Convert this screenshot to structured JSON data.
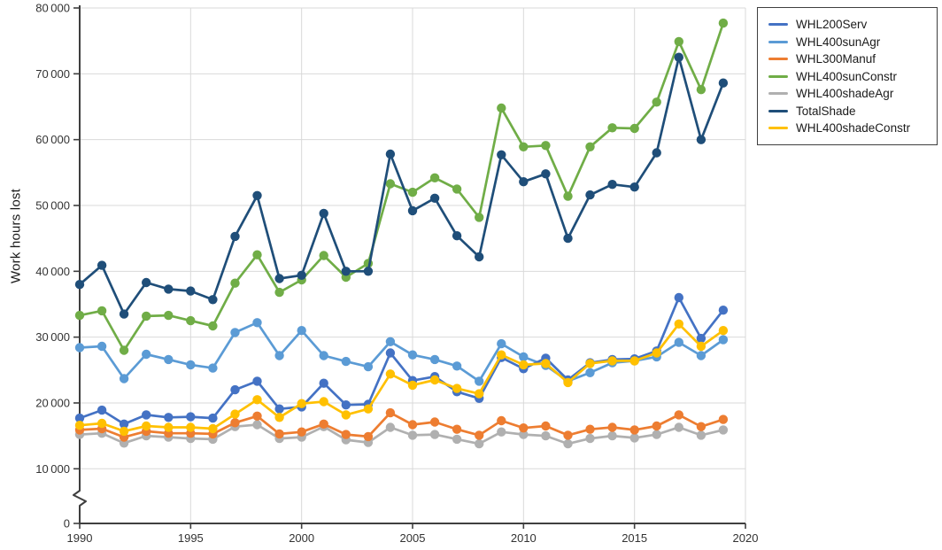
{
  "chart_data": {
    "type": "line",
    "title": "",
    "xlabel": "",
    "ylabel": "Work hours lost",
    "x": [
      1990,
      1991,
      1992,
      1993,
      1994,
      1995,
      1996,
      1997,
      1998,
      1999,
      2000,
      2001,
      2002,
      2003,
      2004,
      2005,
      2006,
      2007,
      2008,
      2009,
      2010,
      2011,
      2012,
      2013,
      2014,
      2015,
      2016,
      2017,
      2018,
      2019
    ],
    "x_axis": {
      "min": 1990,
      "max": 2020,
      "tick_years": [
        1990,
        1995,
        2000,
        2005,
        2010,
        2015,
        2020
      ],
      "tick_labels": [
        "1990",
        "1995",
        "2000",
        "2005",
        "2010",
        "2015",
        "2020"
      ]
    },
    "y_axis": {
      "min": 0,
      "max": 80000,
      "tick_interval": 10000,
      "axis_break_below": 10000,
      "tick_values": [
        0,
        10000,
        20000,
        30000,
        40000,
        50000,
        60000,
        70000,
        80000
      ],
      "tick_labels": [
        "0",
        "10 000",
        "20 000",
        "30 000",
        "40 000",
        "50 000",
        "60 000",
        "70 000",
        "80 000"
      ]
    },
    "grid": true,
    "legend": {
      "position": "top-right"
    },
    "series": [
      {
        "name": "WHL200Serv",
        "color": "#4472C4",
        "values": [
          17700,
          18900,
          16800,
          18200,
          17800,
          17900,
          17700,
          22000,
          23300,
          19100,
          19400,
          23000,
          19700,
          19800,
          27600,
          23400,
          24000,
          21700,
          20700,
          26900,
          25200,
          26800,
          23500,
          26100,
          26600,
          26700,
          27900,
          36000,
          29800,
          34100
        ]
      },
      {
        "name": "WHL400sunAgr",
        "color": "#5B9BD5",
        "values": [
          28400,
          28600,
          23700,
          27400,
          26600,
          25800,
          25300,
          30700,
          32200,
          27200,
          31000,
          27200,
          26300,
          25500,
          29300,
          27300,
          26600,
          25600,
          23300,
          29000,
          27000,
          25700,
          23300,
          24600,
          26100,
          26400,
          27000,
          29200,
          27200,
          29600
        ]
      },
      {
        "name": "WHL300Manuf",
        "color": "#ED7D31",
        "values": [
          15900,
          16100,
          14800,
          15700,
          15400,
          15400,
          15300,
          17000,
          18000,
          15300,
          15600,
          16800,
          15200,
          14900,
          18500,
          16700,
          17100,
          16000,
          15100,
          17300,
          16200,
          16500,
          15100,
          16000,
          16300,
          15900,
          16500,
          18200,
          16400,
          17500
        ]
      },
      {
        "name": "WHL400sunConstr",
        "color": "#70AD47",
        "values": [
          33300,
          34000,
          28000,
          33200,
          33300,
          32500,
          31700,
          38200,
          42500,
          36800,
          38700,
          42400,
          39100,
          41200,
          53300,
          52000,
          54200,
          52500,
          48200,
          64800,
          58900,
          59100,
          51400,
          58900,
          61800,
          61700,
          65700,
          74900,
          67600,
          77700
        ]
      },
      {
        "name": "WHL400shadeAgr",
        "color": "#B0B0B0",
        "values": [
          15200,
          15400,
          13900,
          15000,
          14800,
          14600,
          14500,
          16400,
          16700,
          14600,
          14800,
          16400,
          14400,
          14000,
          16300,
          15100,
          15200,
          14500,
          13800,
          15600,
          15200,
          15000,
          13800,
          14600,
          15000,
          14700,
          15200,
          16300,
          15100,
          15900
        ]
      },
      {
        "name": "TotalShade",
        "color": "#1F4E79",
        "values": [
          38000,
          40900,
          33500,
          38300,
          37300,
          37000,
          35700,
          45300,
          51500,
          38900,
          39400,
          48800,
          40000,
          40000,
          57800,
          49200,
          51100,
          45400,
          42200,
          57700,
          53600,
          54800,
          45000,
          51600,
          53200,
          52800,
          58000,
          72500,
          60000,
          68600
        ]
      },
      {
        "name": "WHL400shadeConstr",
        "color": "#FFC000",
        "values": [
          16600,
          16900,
          15700,
          16500,
          16300,
          16300,
          16100,
          18300,
          20500,
          17800,
          19900,
          20200,
          18200,
          19100,
          24400,
          22700,
          23500,
          22200,
          21400,
          27300,
          25800,
          26000,
          23100,
          26000,
          26400,
          26400,
          27600,
          32000,
          28600,
          31000
        ]
      }
    ],
    "draw_order": [
      4,
      2,
      3,
      5,
      1,
      0,
      6
    ],
    "colors": {
      "gridline": "#D9D9D9",
      "axis": "#3F3F3F",
      "tick_text": "#333333"
    }
  }
}
